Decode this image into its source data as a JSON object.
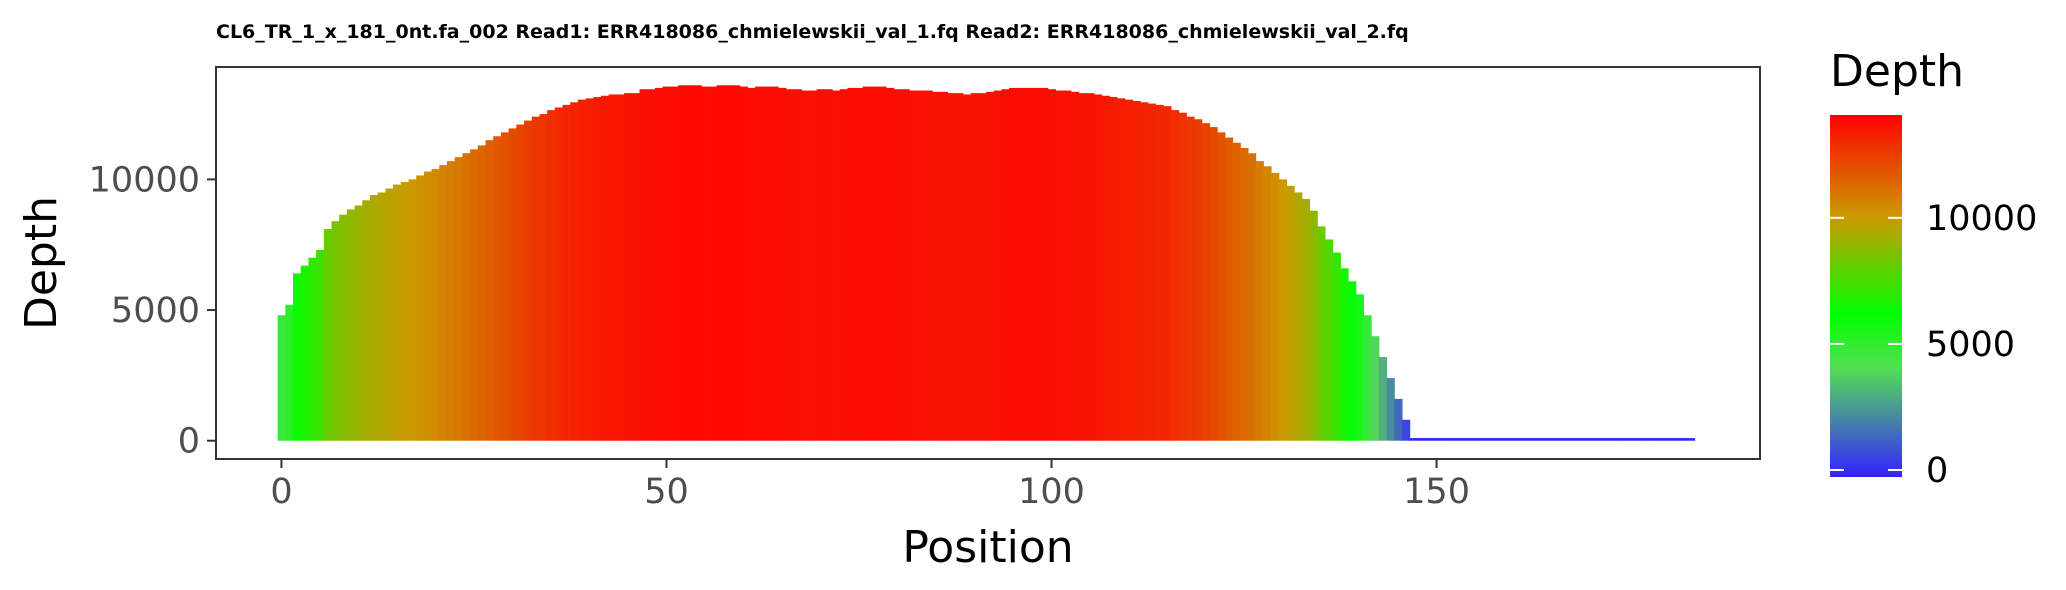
{
  "chart_data": {
    "type": "bar",
    "title": "CL6_TR_1_x_181_0nt.fa_002 Read1: ERR418086_chmielewskii_val_1.fq Read2: ERR418086_chmielewskii_val_2.fq",
    "xlabel": "Position",
    "ylabel": "Depth",
    "xlim": [
      -8.5,
      192
    ],
    "ylim": [
      -700,
      14300
    ],
    "x_ticks": [
      0,
      50,
      100,
      150
    ],
    "y_ticks": [
      0,
      5000,
      10000
    ],
    "x_tick_labels": [
      "0",
      "50",
      "100",
      "150"
    ],
    "y_tick_labels": [
      "0",
      "5000",
      "10000"
    ],
    "legend": {
      "title": "Depth",
      "position": "right",
      "range": [
        0,
        13800
      ],
      "ticks": [
        0,
        5000,
        10000
      ],
      "tick_labels": [
        "0",
        "5000",
        "10000"
      ],
      "colors": [
        "#0000ff",
        "#55dd55",
        "#00ff00",
        "#ff9900",
        "#ff0000"
      ]
    },
    "grid": false,
    "x": [
      0,
      1,
      2,
      3,
      4,
      5,
      6,
      7,
      8,
      9,
      10,
      11,
      12,
      13,
      14,
      15,
      16,
      17,
      18,
      19,
      20,
      21,
      22,
      23,
      24,
      25,
      26,
      27,
      28,
      29,
      30,
      31,
      32,
      33,
      34,
      35,
      36,
      37,
      38,
      39,
      40,
      41,
      42,
      43,
      44,
      45,
      46,
      47,
      48,
      49,
      50,
      51,
      52,
      53,
      54,
      55,
      56,
      57,
      58,
      59,
      60,
      61,
      62,
      63,
      64,
      65,
      66,
      67,
      68,
      69,
      70,
      71,
      72,
      73,
      74,
      75,
      76,
      77,
      78,
      79,
      80,
      81,
      82,
      83,
      84,
      85,
      86,
      87,
      88,
      89,
      90,
      91,
      92,
      93,
      94,
      95,
      96,
      97,
      98,
      99,
      100,
      101,
      102,
      103,
      104,
      105,
      106,
      107,
      108,
      109,
      110,
      111,
      112,
      113,
      114,
      115,
      116,
      117,
      118,
      119,
      120,
      121,
      122,
      123,
      124,
      125,
      126,
      127,
      128,
      129,
      130,
      131,
      132,
      133,
      134,
      135,
      136,
      137,
      138,
      139,
      140,
      141,
      142,
      143,
      144,
      145,
      146,
      147,
      148,
      149,
      150,
      151,
      152,
      153,
      154,
      155,
      156,
      157,
      158,
      159,
      160,
      161,
      162,
      163,
      164,
      165,
      166,
      167,
      168,
      169,
      170,
      171,
      172,
      173,
      174,
      175,
      176,
      177,
      178,
      179,
      180,
      181,
      182,
      183
    ],
    "values": [
      4800,
      5200,
      6400,
      6700,
      7000,
      7300,
      8100,
      8400,
      8650,
      8850,
      9000,
      9200,
      9400,
      9500,
      9650,
      9800,
      9900,
      10000,
      10150,
      10300,
      10400,
      10550,
      10700,
      10850,
      11000,
      11150,
      11300,
      11500,
      11650,
      11800,
      11950,
      12100,
      12250,
      12400,
      12500,
      12650,
      12750,
      12850,
      12950,
      13050,
      13100,
      13150,
      13200,
      13250,
      13250,
      13300,
      13300,
      13450,
      13450,
      13500,
      13550,
      13550,
      13600,
      13600,
      13600,
      13550,
      13550,
      13600,
      13600,
      13600,
      13550,
      13500,
      13550,
      13550,
      13550,
      13500,
      13450,
      13450,
      13400,
      13400,
      13450,
      13450,
      13400,
      13450,
      13500,
      13500,
      13550,
      13550,
      13550,
      13500,
      13450,
      13450,
      13400,
      13400,
      13400,
      13350,
      13350,
      13300,
      13300,
      13250,
      13300,
      13300,
      13350,
      13400,
      13450,
      13500,
      13500,
      13500,
      13500,
      13500,
      13450,
      13400,
      13400,
      13350,
      13300,
      13300,
      13250,
      13200,
      13150,
      13100,
      13050,
      13000,
      12950,
      12900,
      12850,
      12800,
      12650,
      12550,
      12400,
      12300,
      12150,
      12000,
      11800,
      11600,
      11400,
      11200,
      11000,
      10700,
      10500,
      10250,
      10000,
      9750,
      9500,
      9250,
      8800,
      8200,
      7700,
      7200,
      6600,
      6100,
      5600,
      4800,
      4000,
      3200,
      2400,
      1600,
      800,
      100,
      100,
      100,
      100,
      100,
      100,
      100,
      100,
      100,
      100,
      100,
      100,
      100,
      100,
      100,
      100,
      100,
      100,
      100,
      100,
      100,
      100,
      100,
      100,
      100,
      100,
      100,
      100,
      100,
      100,
      100,
      100,
      100,
      100,
      100,
      100,
      100
    ]
  }
}
